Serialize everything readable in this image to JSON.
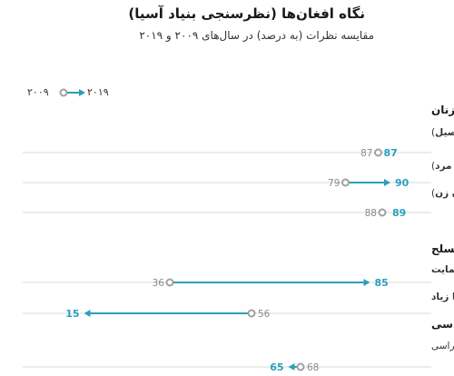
{
  "header": {
    "title": "نگاه افغان‌ها (نظرسنجی بنیاد آسیا)",
    "subtitle": "مقایسه نظرات (به درصد) در سال‌های ۲۰۰۹ و ۲۰۱۹"
  },
  "legend": {
    "year_from": "۲۰۰۹",
    "year_to": "۲۰۱۹"
  },
  "colors": {
    "accent": "#2a9fbc",
    "grey": "#a0a0a0",
    "track": "#d8d8d8"
  },
  "chart_data": {
    "type": "dot-arrow",
    "x_range": [
      0,
      100
    ],
    "sections": [
      {
        "title": "حقوق زنان",
        "rows": [
          {
            "label": "موافق با حق تحصیل زنان (موافق با برابری جنسیتی در مسئله تحصیل)",
            "v2009": 87,
            "v2019": 87,
            "v2009_label": "87",
            "v2019_label": "87"
          },
          {
            "label": "موافق با حق رأی زنان (پاسخ دهندگان مرد)",
            "v2009": 79,
            "v2019": 90,
            "v2009_label": "79",
            "v2019_label": "90"
          },
          {
            "label": "موافق با حق رأی زنان (پاسخ دهندگان زن)",
            "v2009": 88,
            "v2019": 89,
            "v2009_label": "88",
            "v2019_label": "89"
          }
        ]
      },
      {
        "title": "حمایت مردمی از گروه‌های مخالف مسلح",
        "rows": [
          {
            "label": "عدم حمایت",
            "v2009": 36,
            "v2019": 85,
            "v2009_label": "36",
            "v2019_label": "85"
          },
          {
            "label": "حمایت اندک یا زیاد",
            "v2009": 56,
            "v2019": 15,
            "v2009_label": "56",
            "v2019_label": "15"
          }
        ]
      },
      {
        "title": "دموکراسی",
        "rows": [
          {
            "label": "رضایت از نحوه اجرای دموکراسی",
            "v2009": 68,
            "v2019": 65,
            "v2009_label": "68",
            "v2019_label": "65"
          }
        ]
      }
    ]
  }
}
